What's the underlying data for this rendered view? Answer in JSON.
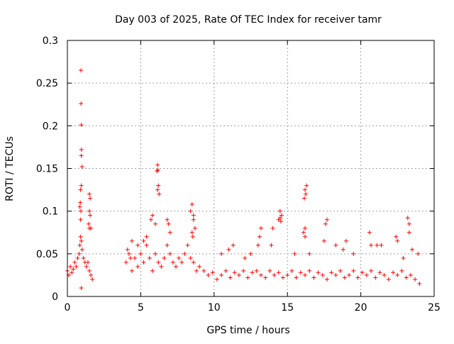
{
  "chart_data": {
    "type": "scatter",
    "title": "Day 003 of 2025, Rate Of TEC Index for receiver tamr",
    "xlabel": "GPS time / hours",
    "ylabel": "ROTI / TECUs",
    "xlim": [
      0,
      25
    ],
    "ylim": [
      0,
      0.3
    ],
    "x_ticks": [
      0,
      5,
      10,
      15,
      20,
      25
    ],
    "x_tick_labels": [
      "0",
      "5",
      "10",
      "15",
      "20",
      "25"
    ],
    "y_ticks": [
      0,
      0.05,
      0.1,
      0.15,
      0.2,
      0.25,
      0.3
    ],
    "y_tick_labels": [
      "0",
      "0.05",
      "0.1",
      "0.15",
      "0.2",
      "0.25",
      "0.3"
    ],
    "grid": true,
    "legend": "none",
    "marker": "plus",
    "color": "#ff0000",
    "series": [
      {
        "x": [
          0.0,
          0.1,
          0.2,
          0.3,
          0.4,
          0.5,
          0.6,
          0.7,
          0.8,
          0.85,
          0.9,
          0.95,
          1.0,
          1.1,
          1.2,
          1.3,
          1.4,
          1.5,
          1.6,
          1.7,
          0.9,
          0.95,
          0.92,
          0.93,
          0.95,
          0.96,
          0.85,
          0.88,
          1.5,
          1.55,
          1.6,
          1.45,
          0.95,
          1.0,
          0.9,
          0.92,
          1.5,
          1.55,
          1.5,
          0.95,
          4.0,
          4.2,
          4.4,
          4.6,
          4.8,
          5.0,
          5.2,
          5.4,
          5.6,
          5.8,
          6.0,
          6.2,
          6.4,
          6.6,
          6.8,
          7.0,
          7.2,
          7.4,
          7.6,
          7.8,
          8.0,
          8.2,
          8.4,
          8.6,
          8.8,
          9.0,
          9.3,
          9.6,
          9.9,
          5.2,
          5.4,
          5.7,
          5.8,
          6.0,
          6.1,
          6.15,
          6.2,
          6.25,
          6.15,
          6.18,
          6.8,
          6.9,
          7.0,
          8.4,
          8.5,
          8.6,
          8.7,
          8.5,
          8.55,
          4.4,
          4.8,
          4.1,
          4.3,
          8.6,
          10.2,
          10.5,
          10.8,
          11.1,
          11.4,
          11.7,
          12.0,
          12.3,
          12.6,
          12.9,
          13.2,
          13.5,
          13.8,
          14.1,
          14.4,
          14.7,
          15.0,
          15.3,
          15.6,
          15.9,
          16.2,
          16.5,
          16.8,
          17.1,
          17.4,
          17.7,
          18.0,
          18.3,
          18.6,
          18.9,
          19.2,
          19.5,
          19.8,
          20.1,
          20.4,
          20.7,
          21.0,
          21.3,
          21.6,
          21.9,
          22.2,
          22.5,
          22.8,
          23.1,
          23.4,
          23.7,
          24.0,
          10.5,
          11.0,
          11.3,
          12.5,
          13.0,
          13.1,
          13.2,
          13.9,
          14.0,
          14.4,
          14.5,
          14.6,
          14.5,
          14.55,
          16.1,
          16.2,
          16.3,
          16.2,
          16.25,
          16.15,
          16.2,
          17.6,
          17.7,
          17.5,
          18.3,
          19.0,
          19.5,
          20.6,
          20.7,
          21.4,
          22.4,
          22.5,
          23.2,
          23.3,
          23.3,
          23.5,
          23.9,
          12.1,
          15.5,
          16.5,
          18.8,
          21.1,
          22.9
        ],
        "y": [
          0.03,
          0.025,
          0.035,
          0.028,
          0.032,
          0.04,
          0.035,
          0.045,
          0.05,
          0.06,
          0.07,
          0.065,
          0.055,
          0.045,
          0.04,
          0.035,
          0.04,
          0.03,
          0.025,
          0.02,
          0.125,
          0.13,
          0.265,
          0.226,
          0.201,
          0.172,
          0.105,
          0.11,
          0.12,
          0.115,
          0.08,
          0.085,
          0.165,
          0.152,
          0.09,
          0.1,
          0.1,
          0.095,
          0.08,
          0.01,
          0.04,
          0.05,
          0.03,
          0.045,
          0.035,
          0.05,
          0.04,
          0.06,
          0.045,
          0.03,
          0.05,
          0.04,
          0.035,
          0.045,
          0.06,
          0.05,
          0.04,
          0.035,
          0.045,
          0.04,
          0.05,
          0.06,
          0.045,
          0.04,
          0.03,
          0.035,
          0.03,
          0.025,
          0.028,
          0.065,
          0.07,
          0.09,
          0.095,
          0.085,
          0.147,
          0.125,
          0.13,
          0.12,
          0.154,
          0.148,
          0.09,
          0.085,
          0.075,
          0.1,
          0.108,
          0.095,
          0.08,
          0.075,
          0.07,
          0.065,
          0.06,
          0.055,
          0.045,
          0.09,
          0.02,
          0.025,
          0.03,
          0.022,
          0.028,
          0.025,
          0.03,
          0.022,
          0.028,
          0.03,
          0.025,
          0.022,
          0.03,
          0.025,
          0.028,
          0.022,
          0.025,
          0.03,
          0.022,
          0.028,
          0.025,
          0.03,
          0.022,
          0.028,
          0.025,
          0.02,
          0.028,
          0.025,
          0.03,
          0.022,
          0.025,
          0.03,
          0.022,
          0.028,
          0.025,
          0.03,
          0.022,
          0.028,
          0.025,
          0.02,
          0.028,
          0.025,
          0.03,
          0.022,
          0.025,
          0.02,
          0.015,
          0.05,
          0.055,
          0.06,
          0.05,
          0.06,
          0.07,
          0.08,
          0.06,
          0.08,
          0.09,
          0.092,
          0.095,
          0.1,
          0.088,
          0.075,
          0.08,
          0.13,
          0.125,
          0.12,
          0.115,
          0.07,
          0.085,
          0.09,
          0.065,
          0.06,
          0.065,
          0.05,
          0.075,
          0.06,
          0.06,
          0.07,
          0.065,
          0.092,
          0.085,
          0.075,
          0.055,
          0.05,
          0.045,
          0.05,
          0.05,
          0.055,
          0.06,
          0.045
        ]
      }
    ]
  }
}
